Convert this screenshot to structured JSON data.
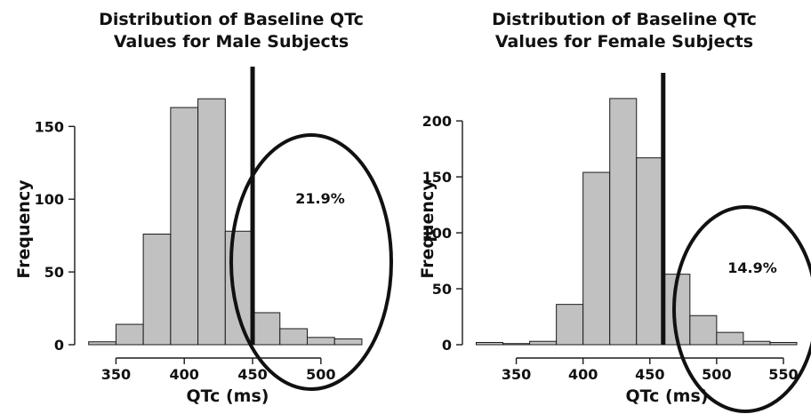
{
  "chart_data": [
    {
      "type": "bar",
      "title_lines": [
        "Distribution of Baseline QTc",
        "Values for Male Subjects"
      ],
      "xlabel": "QTc (ms)",
      "ylabel": "Frequency",
      "xlim": [
        325,
        545
      ],
      "ylim": [
        0,
        185
      ],
      "xticks": [
        350,
        400,
        450,
        500
      ],
      "yticks": [
        0,
        50,
        100,
        150
      ],
      "bin_width": 20,
      "bins": [
        {
          "x0": 330,
          "x1": 350,
          "value": 2
        },
        {
          "x0": 350,
          "x1": 370,
          "value": 14
        },
        {
          "x0": 370,
          "x1": 390,
          "value": 76
        },
        {
          "x0": 390,
          "x1": 410,
          "value": 163
        },
        {
          "x0": 410,
          "x1": 430,
          "value": 169
        },
        {
          "x0": 430,
          "x1": 450,
          "value": 78
        },
        {
          "x0": 450,
          "x1": 470,
          "value": 22
        },
        {
          "x0": 470,
          "x1": 490,
          "value": 11
        },
        {
          "x0": 490,
          "x1": 510,
          "value": 5
        },
        {
          "x0": 510,
          "x1": 530,
          "value": 4
        }
      ],
      "reference_line_x": 450,
      "annotation": "21.9%",
      "grid": false,
      "legend": "none"
    },
    {
      "type": "bar",
      "title_lines": [
        "Distribution of Baseline QTc",
        "Values for Female Subjects"
      ],
      "xlabel": "QTc (ms)",
      "ylabel": "Frequency",
      "xlim": [
        315,
        560
      ],
      "ylim": [
        0,
        235
      ],
      "xticks": [
        350,
        400,
        450,
        500,
        550
      ],
      "yticks": [
        0,
        50,
        100,
        150,
        200
      ],
      "bin_width": 20,
      "bins": [
        {
          "x0": 320,
          "x1": 340,
          "value": 2
        },
        {
          "x0": 340,
          "x1": 360,
          "value": 1
        },
        {
          "x0": 360,
          "x1": 380,
          "value": 3
        },
        {
          "x0": 380,
          "x1": 400,
          "value": 36
        },
        {
          "x0": 400,
          "x1": 420,
          "value": 154
        },
        {
          "x0": 420,
          "x1": 440,
          "value": 220
        },
        {
          "x0": 440,
          "x1": 460,
          "value": 167
        },
        {
          "x0": 460,
          "x1": 480,
          "value": 63
        },
        {
          "x0": 480,
          "x1": 500,
          "value": 26
        },
        {
          "x0": 500,
          "x1": 520,
          "value": 11
        },
        {
          "x0": 520,
          "x1": 540,
          "value": 3
        },
        {
          "x0": 540,
          "x1": 560,
          "value": 2
        }
      ],
      "reference_line_x": 460,
      "annotation": "14.9%",
      "grid": false,
      "legend": "none"
    }
  ]
}
